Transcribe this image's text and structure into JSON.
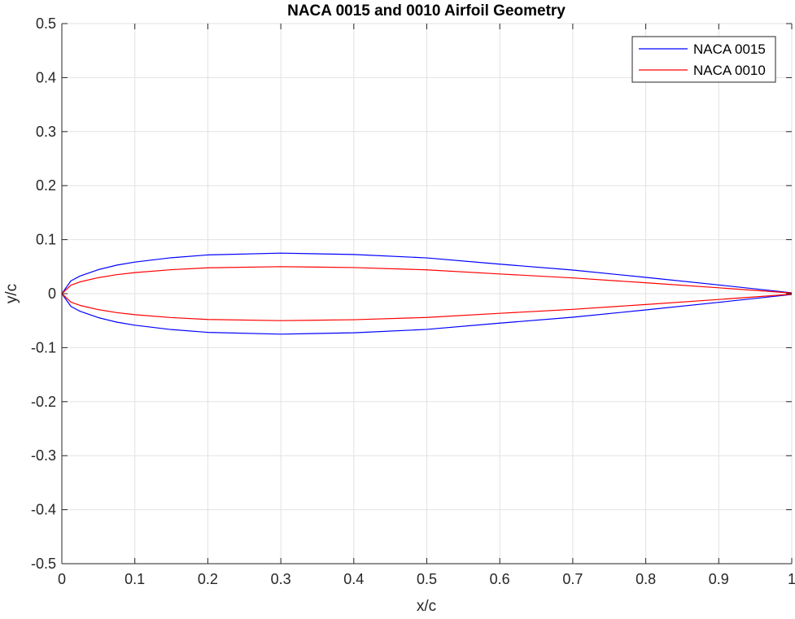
{
  "chart_data": {
    "type": "line",
    "title": "NACA 0015 and 0010 Airfoil Geometry",
    "xlabel": "x/c",
    "ylabel": "y/c",
    "xlim": [
      0,
      1
    ],
    "ylim": [
      -0.5,
      0.5
    ],
    "xticks": [
      0,
      0.1,
      0.2,
      0.3,
      0.4,
      0.5,
      0.6,
      0.7,
      0.8,
      0.9,
      1
    ],
    "xtick_labels": [
      "0",
      "0.1",
      "0.2",
      "0.3",
      "0.4",
      "0.5",
      "0.6",
      "0.7",
      "0.8",
      "0.9",
      "1"
    ],
    "yticks": [
      -0.5,
      -0.4,
      -0.3,
      -0.2,
      -0.1,
      0,
      0.1,
      0.2,
      0.3,
      0.4,
      0.5
    ],
    "ytick_labels": [
      "-0.5",
      "-0.4",
      "-0.3",
      "-0.2",
      "-0.1",
      "0",
      "0.1",
      "0.2",
      "0.3",
      "0.4",
      "0.5"
    ],
    "grid": true,
    "legend": {
      "position": "top-right",
      "entries": [
        "NACA 0015",
        "NACA 0010"
      ]
    },
    "series": [
      {
        "name": "NACA 0015",
        "color": "#0000ff",
        "x": [
          1,
          0.9,
          0.8,
          0.7,
          0.6,
          0.5,
          0.4,
          0.3,
          0.2,
          0.15,
          0.1,
          0.075,
          0.05,
          0.025,
          0.0125,
          0,
          0.0125,
          0.025,
          0.05,
          0.075,
          0.1,
          0.15,
          0.2,
          0.3,
          0.4,
          0.5,
          0.6,
          0.7,
          0.8,
          0.9,
          1
        ],
        "y": [
          0.0016,
          0.0161,
          0.0301,
          0.0437,
          0.0546,
          0.0662,
          0.0725,
          0.075,
          0.0717,
          0.0665,
          0.0585,
          0.0527,
          0.0444,
          0.0327,
          0.0237,
          0,
          -0.0237,
          -0.0327,
          -0.0444,
          -0.0527,
          -0.0585,
          -0.0665,
          -0.0717,
          -0.075,
          -0.0725,
          -0.0662,
          -0.0546,
          -0.0437,
          -0.0301,
          -0.0161,
          -0.0016
        ]
      },
      {
        "name": "NACA 0010",
        "color": "#ff0000",
        "x": [
          1,
          0.9,
          0.8,
          0.7,
          0.6,
          0.5,
          0.4,
          0.3,
          0.2,
          0.15,
          0.1,
          0.075,
          0.05,
          0.025,
          0.0125,
          0,
          0.0125,
          0.025,
          0.05,
          0.075,
          0.1,
          0.15,
          0.2,
          0.3,
          0.4,
          0.5,
          0.6,
          0.7,
          0.8,
          0.9,
          1
        ],
        "y": [
          0.0011,
          0.0108,
          0.0201,
          0.0291,
          0.0364,
          0.0441,
          0.0483,
          0.05,
          0.0478,
          0.0443,
          0.039,
          0.0351,
          0.0296,
          0.0218,
          0.0158,
          0,
          -0.0158,
          -0.0218,
          -0.0296,
          -0.0351,
          -0.039,
          -0.0443,
          -0.0478,
          -0.05,
          -0.0483,
          -0.0441,
          -0.0364,
          -0.0291,
          -0.0201,
          -0.0108,
          -0.0011
        ]
      }
    ]
  }
}
